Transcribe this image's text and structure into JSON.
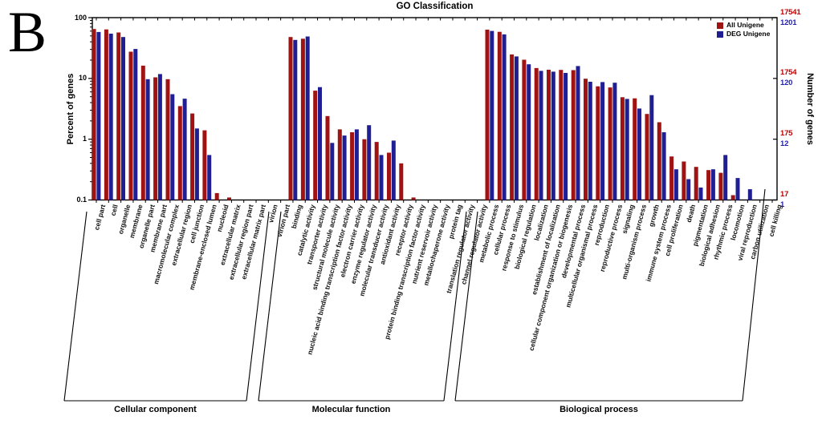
{
  "panel_label": "B",
  "chart_data": {
    "type": "bar",
    "title": "GO Classification",
    "scale": "log",
    "ylim": [
      0.1,
      100
    ],
    "ylabel_left": "Percent of genes",
    "ylabel_right": "Number of genes",
    "yaxis_left_ticks": [
      "100",
      "10",
      "1",
      "0.1"
    ],
    "yaxis_right_ticks": [
      {
        "all": "17541",
        "deg": "1201"
      },
      {
        "all": "1754",
        "deg": "120"
      },
      {
        "all": "175",
        "deg": "12"
      },
      {
        "all": "17",
        "deg": "1"
      }
    ],
    "legend": [
      {
        "label": "All Unigene",
        "color": "#a01313"
      },
      {
        "label": "DEG Unigene",
        "color": "#1f1f93"
      }
    ],
    "groups": [
      {
        "name": "Cellular component",
        "categories": [
          "cell part",
          "cell",
          "organelle",
          "membrane",
          "organelle part",
          "membrane part",
          "macromolecular complex",
          "extracellular region",
          "cell junction",
          "membrane-enclosed lumen",
          "nucleoid",
          "extracellular matrix",
          "extracellular region part",
          "extracellular matrix part",
          "virion",
          "virion part"
        ],
        "all_unigene": [
          65,
          64,
          57,
          27.5,
          16.2,
          10.4,
          9.7,
          3.5,
          2.65,
          1.4,
          0.13,
          0.11,
          0,
          0,
          0,
          0
        ],
        "deg_unigene": [
          58,
          54.5,
          48,
          30.5,
          9.7,
          11.8,
          5.5,
          4.65,
          1.5,
          0.55,
          0,
          0,
          0,
          0,
          0,
          0
        ]
      },
      {
        "name": "Molecular function",
        "categories": [
          "binding",
          "catalytic activity",
          "transporter activity",
          "structural molecule activity",
          "nucleic acid binding transcription factor activity",
          "electron carrier activity",
          "enzyme regulator activity",
          "molecular transducer activity",
          "antioxidant activity",
          "receptor activity",
          "protein binding transcription factor activity",
          "nutrient reservoir activity",
          "metallochaperone activity",
          "protein tag",
          "translation regulator activity",
          "channel regulator activity"
        ],
        "all_unigene": [
          48,
          45,
          6.3,
          2.4,
          1.45,
          1.3,
          1.0,
          0.9,
          0.6,
          0.4,
          0.11,
          0,
          0,
          0,
          0,
          0
        ],
        "deg_unigene": [
          43,
          49,
          7.2,
          0.87,
          1.15,
          1.45,
          1.7,
          0.55,
          0.95,
          0,
          0,
          0,
          0,
          0,
          0,
          0
        ]
      },
      {
        "name": "Biological process",
        "categories": [
          "metabolic process",
          "cellular process",
          "response to stimulus",
          "biological regulation",
          "localization",
          "establishment of localization",
          "cellular component organization or biogenesis",
          "developmental process",
          "multicellular organismal process",
          "reproduction",
          "reproductive process",
          "signaling",
          "multi-organism process",
          "growth",
          "immune system process",
          "cell proliferation",
          "death",
          "pigmentation",
          "biological adhesion",
          "rhythmic process",
          "locomotion",
          "viral reproduction",
          "carbon utilization",
          "cell killing"
        ],
        "all_unigene": [
          63.5,
          58.5,
          24.8,
          20.3,
          14.8,
          13.9,
          13.8,
          13.7,
          9.9,
          7.4,
          7.1,
          4.9,
          4.7,
          2.6,
          1.9,
          0.52,
          0.43,
          0.35,
          0.31,
          0.28,
          0.12,
          0,
          0,
          0
        ],
        "deg_unigene": [
          60.5,
          53,
          23,
          17.1,
          13.3,
          12.9,
          12.3,
          16,
          8.8,
          8.7,
          8.5,
          4.6,
          3.2,
          5.3,
          1.3,
          0.32,
          0.22,
          0.16,
          0.32,
          0.55,
          0.23,
          0.15,
          0,
          0
        ]
      }
    ]
  }
}
